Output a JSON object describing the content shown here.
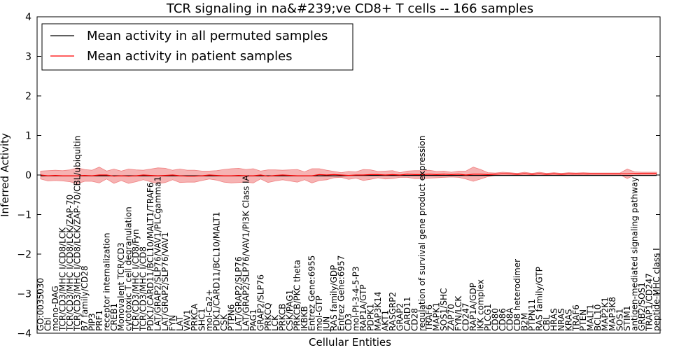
{
  "chart_data": {
    "type": "line",
    "title": "TCR signaling in na&#239;ve CD8+ T cells -- 166 samples",
    "xlabel": "Cellular Entities",
    "ylabel": "Inferred Activity",
    "ylim": [
      -4,
      4
    ],
    "yticks": [
      "−4",
      "−3",
      "−2",
      "−1",
      "0",
      "1",
      "2",
      "3",
      "4"
    ],
    "grid": false,
    "legend_position": "top-left",
    "series": [
      {
        "name": "Mean activity in all permuted samples",
        "color": "#000000",
        "values": [
          -0.02,
          -0.02,
          -0.02,
          -0.02,
          -0.02,
          -0.02,
          -0.02,
          -0.02,
          -0.02,
          -0.02,
          -0.02,
          -0.02,
          -0.02,
          -0.02,
          -0.02,
          -0.02,
          -0.02,
          -0.02,
          -0.02,
          -0.02,
          -0.02,
          -0.02,
          -0.02,
          -0.02,
          -0.02,
          -0.02,
          -0.02,
          -0.02,
          -0.02,
          -0.02,
          -0.02,
          -0.02,
          -0.02,
          -0.02,
          -0.02,
          -0.02,
          -0.02,
          -0.02,
          -0.02,
          -0.02,
          -0.02,
          -0.02,
          -0.01,
          -0.01,
          -0.01,
          -0.01,
          -0.01,
          -0.01,
          -0.01,
          -0.01,
          -0.01,
          -0.01,
          -0.01,
          -0.01,
          -0.01,
          -0.01,
          -0.01,
          -0.01,
          -0.01,
          -0.01,
          -0.01,
          -0.01,
          -0.01,
          -0.01,
          -0.01,
          -0.01,
          -0.01,
          -0.01,
          -0.01,
          -0.01,
          -0.01,
          -0.01,
          -0.01,
          -0.01,
          -0.01,
          -0.01,
          -0.01,
          -0.01,
          -0.01,
          -0.01,
          -0.01,
          -0.01,
          -0.01,
          -0.01,
          -0.01
        ]
      },
      {
        "name": "Mean activity in patient samples",
        "color": "#ff0000",
        "band_color": "#f08080",
        "values": [
          0.0,
          -0.02,
          -0.01,
          -0.02,
          -0.02,
          -0.02,
          -0.01,
          -0.02,
          0.0,
          0.0,
          -0.03,
          -0.02,
          -0.03,
          -0.02,
          0.0,
          -0.01,
          -0.02,
          -0.01,
          0.0,
          -0.02,
          -0.03,
          -0.03,
          -0.02,
          0.0,
          -0.01,
          -0.02,
          -0.02,
          -0.01,
          -0.02,
          -0.02,
          0.0,
          -0.03,
          -0.01,
          0.0,
          -0.01,
          -0.02,
          -0.02,
          -0.02,
          0.01,
          0.0,
          0.01,
          0.0,
          -0.01,
          0.0,
          0.0,
          0.01,
          0.01,
          0.0,
          0.01,
          0.0,
          0.02,
          0.01,
          0.01,
          0.02,
          0.01,
          0.02,
          0.01,
          0.02,
          0.0,
          0.02,
          0.02,
          0.01,
          0.02,
          0.03,
          0.03,
          0.02,
          0.03,
          0.02,
          0.03,
          0.02,
          0.03,
          0.02,
          0.03,
          0.03,
          0.03,
          0.03,
          0.03,
          0.03,
          0.03,
          0.03,
          0.03,
          0.04,
          0.04,
          0.04,
          0.04
        ],
        "band": [
          0.1,
          0.13,
          0.13,
          0.13,
          0.15,
          0.2,
          0.15,
          0.14,
          0.2,
          0.1,
          0.18,
          0.12,
          0.18,
          0.15,
          0.12,
          0.16,
          0.2,
          0.18,
          0.12,
          0.17,
          0.15,
          0.15,
          0.12,
          0.1,
          0.12,
          0.16,
          0.18,
          0.18,
          0.16,
          0.18,
          0.1,
          0.16,
          0.14,
          0.12,
          0.14,
          0.16,
          0.1,
          0.18,
          0.15,
          0.12,
          0.08,
          0.06,
          0.1,
          0.08,
          0.14,
          0.12,
          0.08,
          0.1,
          0.1,
          0.06,
          0.08,
          0.1,
          0.1,
          0.1,
          0.08,
          0.08,
          0.06,
          0.08,
          0.1,
          0.18,
          0.12,
          0.05,
          0.03,
          0.04,
          0.03,
          0.02,
          0.04,
          0.02,
          0.04,
          0.02,
          0.03,
          0.02,
          0.03,
          0.02,
          0.03,
          0.02,
          0.02,
          0.02,
          0.02,
          0.02,
          0.12,
          0.04,
          0.03,
          0.03,
          0.03
        ]
      }
    ],
    "categories": [
      "GO:0035030",
      "Cbl",
      "mono-DAG",
      "TCR/CD3/MHC I/CD8/LCK",
      "TCR/CD3/MHC I/CD8/LCK/ZAP-70",
      "TCR/CD3/MHC I/CD8/LCK/ZAP-70/CBL/ubiquitin",
      "B7 family/CD28",
      "PIP3",
      "PRF1",
      "receptor internalization",
      "CREB1",
      "Monovalent TCR/CD3",
      "cytotoxic T cell degranulation",
      "TCR/CD3/MHC I/CD8/Fyn",
      "TCR/CD3/MHC I/CD8",
      "PDK1/CARD11/BCL10/MALT1/TRAF6",
      "LAT/GRAP2/SLP76/VAV1/PLCgamma1",
      "LAT/GRAP2/SLP76/VAV1",
      "FYN",
      "LAT",
      "VAV1",
      "PRKCA",
      "SHC1",
      "mol-Ca2+",
      "PDK1/CARD11/BCL10/MALT1",
      "CSK",
      "PTPN6",
      "LAT/GRAP2/SLP76",
      "LAT/GRAP2/SLP76/VAV1/PI3K Class IA",
      "PAG1",
      "GRAP2/SLP76",
      "PRKCQ",
      "LCK",
      "PRKCB",
      "CSK/PAG1",
      "PRKCB/PKC theta",
      "IKBKB",
      "Entrez Gene:6955",
      "mol-GTP",
      "JUN",
      "RAS family/GDP",
      "Entrez Gene:6957",
      "CD3",
      "mol-PI-3-4-5-P3",
      "RAP1A/GTP",
      "PDPK1",
      "MAP3K14",
      "AKT1",
      "RASGRP2",
      "GRAP2",
      "CARD11",
      "CD28",
      "regulation of survival gene product expression",
      "TRAF6",
      "MAPK1",
      "SOS1/SHC",
      "ZAP70",
      "FYN/LCK",
      "CD247",
      "RAP1A/GDP",
      "IKK complex",
      "PLCG1",
      "CD80",
      "CD86",
      "CD8A",
      "CD8 heterodimer",
      "B2M",
      "PTPN11",
      "RAS family/GTP",
      "CBL",
      "HRAS",
      "NRAS",
      "KRAS",
      "TRAF6",
      "PTEN",
      "MALT1",
      "BCL10",
      "MAP2K1",
      "MAP3K8",
      "SOS1",
      "STIM1",
      "antigen-mediated signaling pathway",
      "GRB2/SOS1",
      "TRAP1/CD247",
      "peptide-MHC class I"
    ]
  }
}
